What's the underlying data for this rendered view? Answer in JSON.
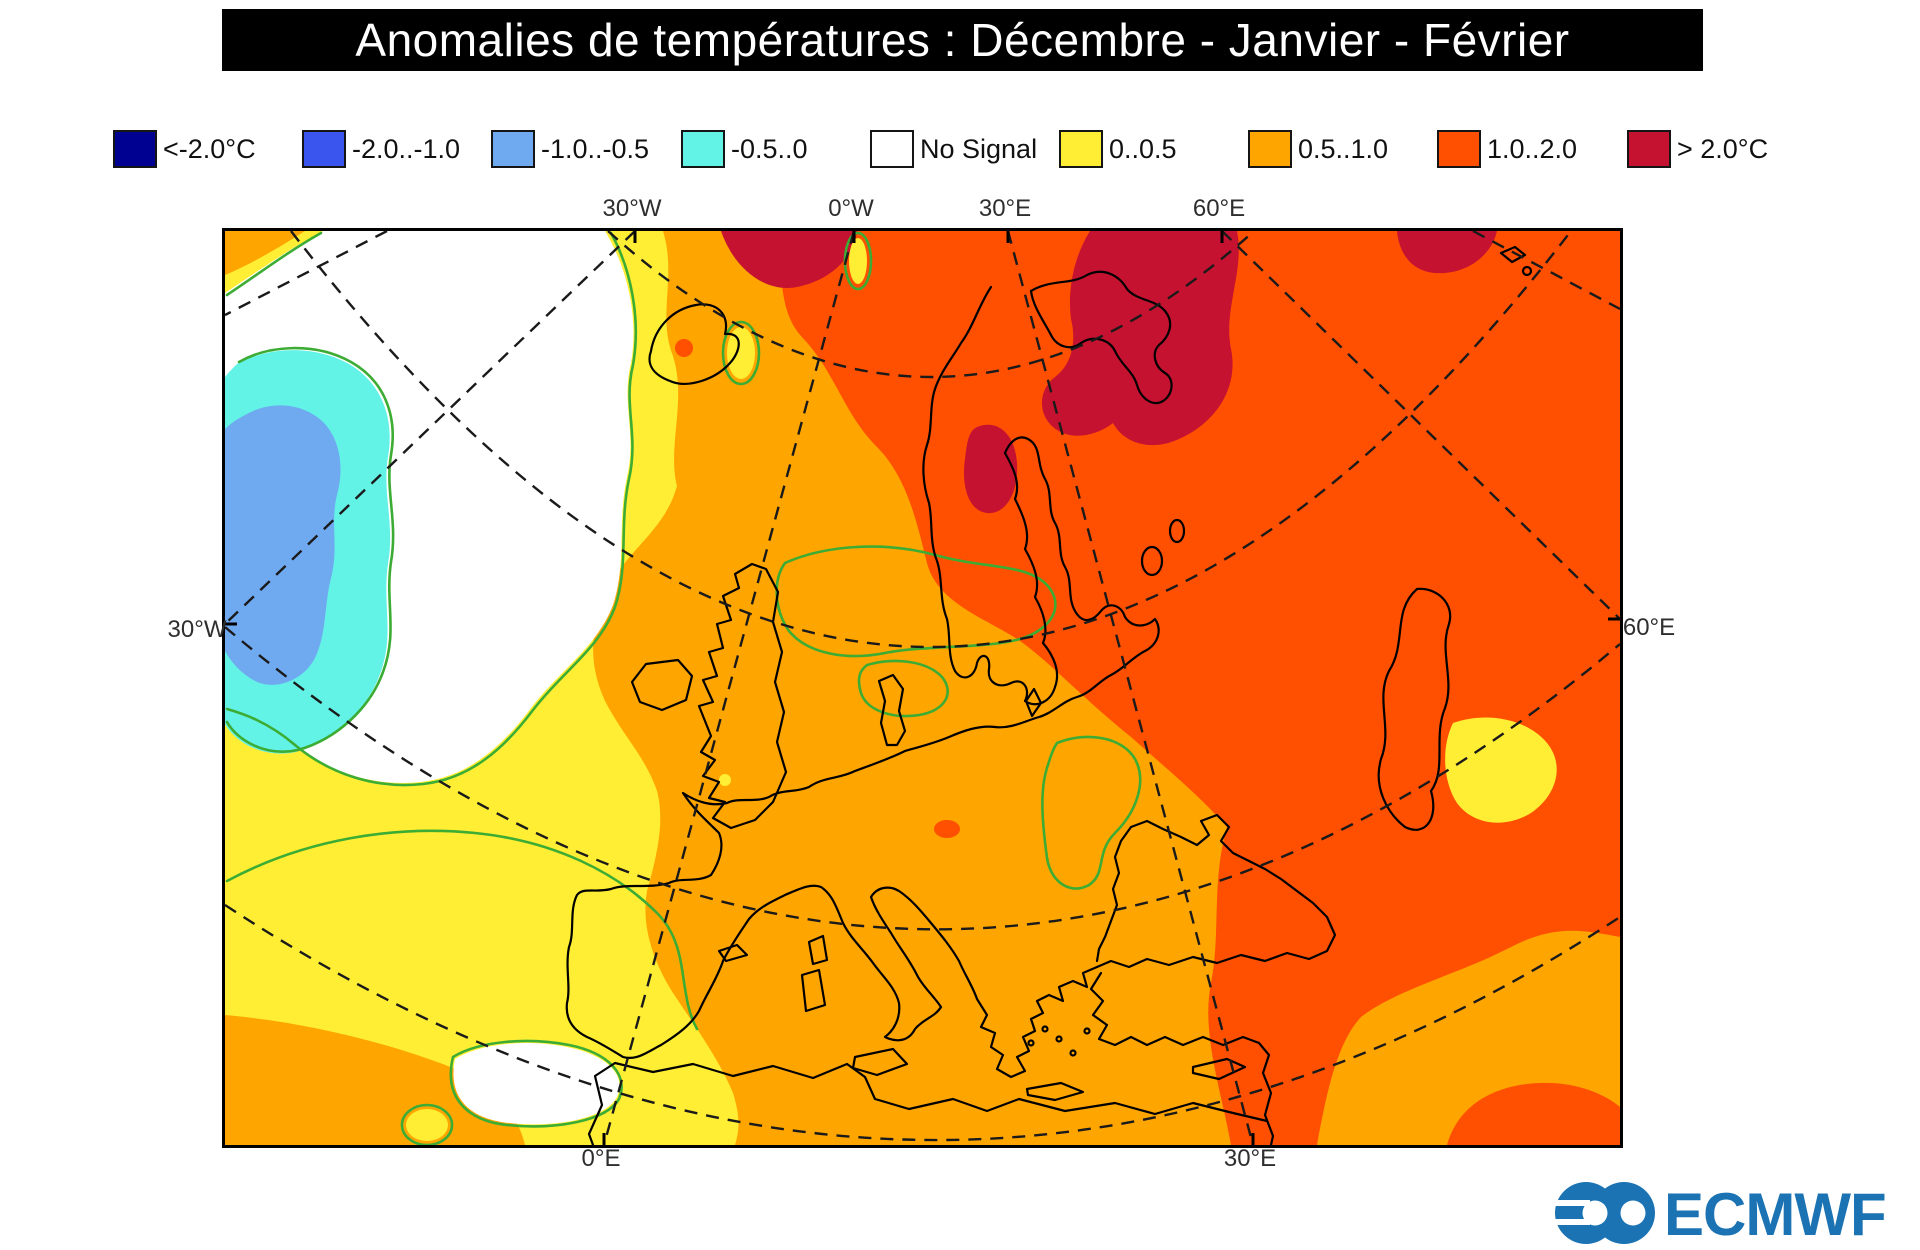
{
  "title": "Anomalies de températures : Décembre - Janvier - Février",
  "legend": {
    "items": [
      {
        "label": "<-2.0°C",
        "color": "#000091"
      },
      {
        "label": "-2.0..-1.0",
        "color": "#3A55EE"
      },
      {
        "label": "-1.0..-0.5",
        "color": "#6FAAF0"
      },
      {
        "label": "-0.5..0",
        "color": "#63F2E6"
      },
      {
        "label": "No Signal",
        "color": "#FFFFFF"
      },
      {
        "label": "0..0.5",
        "color": "#FFEE33"
      },
      {
        "label": "0.5..1.0",
        "color": "#FFA500"
      },
      {
        "label": "1.0..2.0",
        "color": "#FF4F00"
      },
      {
        "label": "> 2.0°C",
        "color": "#C51230"
      }
    ]
  },
  "map": {
    "axis_labels": {
      "top": [
        "30°W",
        "0°W",
        "30°E",
        "60°E"
      ],
      "bottom": [
        "0°E",
        "30°E"
      ],
      "left": "30°W",
      "right": "60°E"
    },
    "colors": {
      "base_orange": "#FFA500",
      "yellow": "#FFEE33",
      "red_orange": "#FF4F00",
      "dark_red": "#C51230",
      "white_no_signal": "#FFFFFF",
      "cyan": "#63F2E6",
      "light_blue": "#6FAAF0",
      "contour_green": "#3CAC34",
      "coastline": "#000000"
    }
  },
  "logo": {
    "text": "ECMWF",
    "color": "#1B73B3"
  }
}
